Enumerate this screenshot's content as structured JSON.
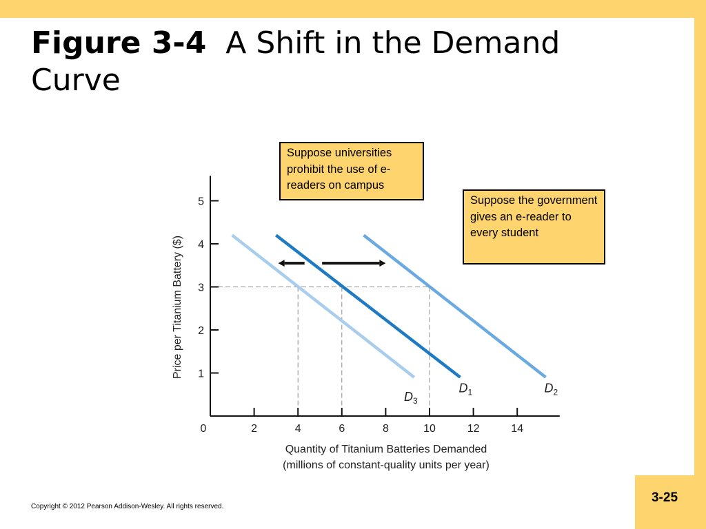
{
  "slide": {
    "title_bold": "Figure 3-4",
    "title_rest": "A Shift in the Demand Curve",
    "copyright": "Copyright © 2012 Pearson Addison-Wesley. All rights reserved.",
    "page_number": "3-25"
  },
  "colors": {
    "accent": "#fdd46d",
    "d1": "#1f7ac4",
    "d2": "#6aaae0",
    "d3": "#a9cdec",
    "guide": "#8c8c8c"
  },
  "chart_data": {
    "type": "line",
    "title": "",
    "xlabel_line1": "Quantity of Titanium Batteries Demanded",
    "xlabel_line2": "(millions of constant-quality units per year)",
    "ylabel": "Price per Titanium Battery ($)",
    "xlim": [
      0,
      16
    ],
    "ylim": [
      0,
      5.5
    ],
    "origin_label": "0",
    "xticks": [
      2,
      4,
      6,
      8,
      10,
      12,
      14
    ],
    "yticks": [
      1,
      2,
      3,
      4,
      5
    ],
    "grid": false,
    "series": [
      {
        "name": "D",
        "sub": "1",
        "color_key": "d1",
        "x": [
          3,
          11.4
        ],
        "y": [
          4.2,
          0.9
        ],
        "label_at": [
          11.4,
          0.65
        ]
      },
      {
        "name": "D",
        "sub": "2",
        "color_key": "d2",
        "x": [
          7,
          15.3
        ],
        "y": [
          4.2,
          0.9
        ],
        "label_at": [
          15.3,
          0.65
        ]
      },
      {
        "name": "D",
        "sub": "3",
        "color_key": "d3",
        "x": [
          1,
          9.3
        ],
        "y": [
          4.2,
          0.9
        ],
        "label_at": [
          8.9,
          0.45
        ]
      }
    ],
    "guide_price": 3,
    "guide_quantities": [
      4,
      6,
      10
    ],
    "shift_arrows": [
      {
        "direction": "left",
        "x_from": 4.3,
        "x_to": 3.1,
        "y": 3.55
      },
      {
        "direction": "right",
        "x_from": 5.1,
        "x_to": 8.0,
        "y": 3.55
      }
    ],
    "annotations": [
      "Suppose universities prohibit the use of e-readers on campus",
      "Suppose the government gives an e-reader to every student"
    ]
  }
}
